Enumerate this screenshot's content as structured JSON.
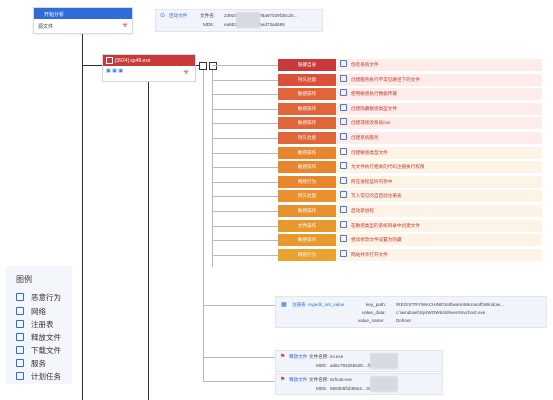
{
  "root": {
    "title": "开始分析",
    "subtitle": "源文件",
    "info_label": "启动文件",
    "filename_label": "文件名:",
    "filename_value": "23934…e4dba6078a97029f3bc20…",
    "md5_label": "MD5:",
    "md5_value": "ea6b3…ed6428ebed73ad665"
  },
  "process": {
    "title": "[3924] sp48.exe"
  },
  "behaviors": [
    {
      "tag": "隐藏自身",
      "desc": "伪装系统文件",
      "color": "#c83a3a"
    },
    {
      "tag": "持久驻留",
      "desc": "创建服务执行不常见路径下的文件",
      "color": "#d9513a"
    },
    {
      "tag": "敏感操作",
      "desc": "使用敏感执行数据传输",
      "color": "#e0663a"
    },
    {
      "tag": "敏感操作",
      "desc": "创建隐藏敏感类型文件",
      "color": "#e0663a"
    },
    {
      "tag": "敏感操作",
      "desc": "创建或修改系统exe",
      "color": "#e0663a"
    },
    {
      "tag": "持久驻留",
      "desc": "创建系统服务",
      "color": "#e0663a"
    },
    {
      "tag": "敏感操作",
      "desc": "创建敏感类型文件",
      "color": "#e8862e"
    },
    {
      "tag": "敏感操作",
      "desc": "为文件执行相关的代码注册执行权限",
      "color": "#e8862e"
    },
    {
      "tag": "网络行为",
      "desc": "所在进程监听内存中",
      "color": "#e8862e"
    },
    {
      "tag": "持久驻留",
      "desc": "写入常见的自启动注册表",
      "color": "#e8912e"
    },
    {
      "tag": "敏感操作",
      "desc": "启动新进程",
      "color": "#e8912e"
    },
    {
      "tag": "文件操作",
      "desc": "在敏感类型的系统目录中创建文件",
      "color": "#e8992e"
    },
    {
      "tag": "敏感操作",
      "desc": "尝试修改文件设置为隐藏",
      "color": "#e8992e"
    },
    {
      "tag": "网络行为",
      "desc": "网站共享打开文件",
      "color": "#e8a22e"
    }
  ],
  "registry": {
    "label": "注册表",
    "key_name": "regedit_set_value",
    "fields": [
      {
        "k": "key_path:",
        "v": "\\REGISTRY\\MACHINE\\Software\\Microsoft\\Window…"
      },
      {
        "k": "value_data:",
        "v": "c:\\windows\\SysWOW64\\drivers\\svchost.exe"
      },
      {
        "k": "value_name:",
        "v": "Dnhner"
      }
    ]
  },
  "files": [
    {
      "label": "释放文件",
      "name_label": "文件名称:",
      "name": "ini.exe",
      "md5_label": "MD5:",
      "md5": "ad6c79425b5d0…f0784c8"
    },
    {
      "label": "释放文件",
      "name_label": "文件名称:",
      "name": "svhost.exe",
      "md5_label": "MD5:",
      "md5": "5983b6f1b96e2…0c4f6f0804"
    }
  ],
  "legend": {
    "title": "图例",
    "items": [
      {
        "label": "恶意行为",
        "icon": "warning-icon"
      },
      {
        "label": "网络",
        "icon": "network-icon"
      },
      {
        "label": "注册表",
        "icon": "registry-icon"
      },
      {
        "label": "释放文件",
        "icon": "file-icon"
      },
      {
        "label": "下载文件",
        "icon": "download-icon"
      },
      {
        "label": "服务",
        "icon": "service-icon"
      },
      {
        "label": "计划任务",
        "icon": "task-icon"
      }
    ]
  },
  "colors": {
    "accent": "#2f6cd9",
    "danger": "#c83a3a",
    "warn": "#e8862e"
  }
}
